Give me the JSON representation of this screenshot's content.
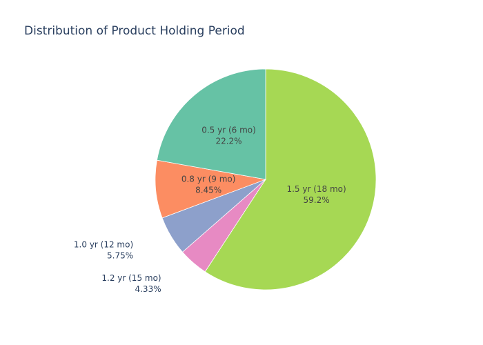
{
  "chart_data": {
    "type": "pie",
    "title": "Distribution of Product Holding Period",
    "slices": [
      {
        "label": "1.5 yr (18 mo)",
        "value": 59.2,
        "percent_label": "59.2%",
        "color": "#a6d854",
        "text_color": "#444444",
        "label_position": "inside"
      },
      {
        "label": "1.2 yr (15 mo)",
        "value": 4.33,
        "percent_label": "4.33%",
        "color": "#e78ac3",
        "text_color": "#2a3f5f",
        "label_position": "outside"
      },
      {
        "label": "1.0 yr (12 mo)",
        "value": 5.75,
        "percent_label": "5.75%",
        "color": "#8da0cb",
        "text_color": "#2a3f5f",
        "label_position": "outside"
      },
      {
        "label": "0.8 yr (9 mo)",
        "value": 8.45,
        "percent_label": "8.45%",
        "color": "#fc8d62",
        "text_color": "#444444",
        "label_position": "inside"
      },
      {
        "label": "0.5 yr (6 mo)",
        "value": 22.2,
        "percent_label": "22.2%",
        "color": "#66c2a5",
        "text_color": "#444444",
        "label_position": "inside"
      }
    ],
    "direction": "clockwise",
    "start_angle": "12 o'clock",
    "legend": false
  }
}
